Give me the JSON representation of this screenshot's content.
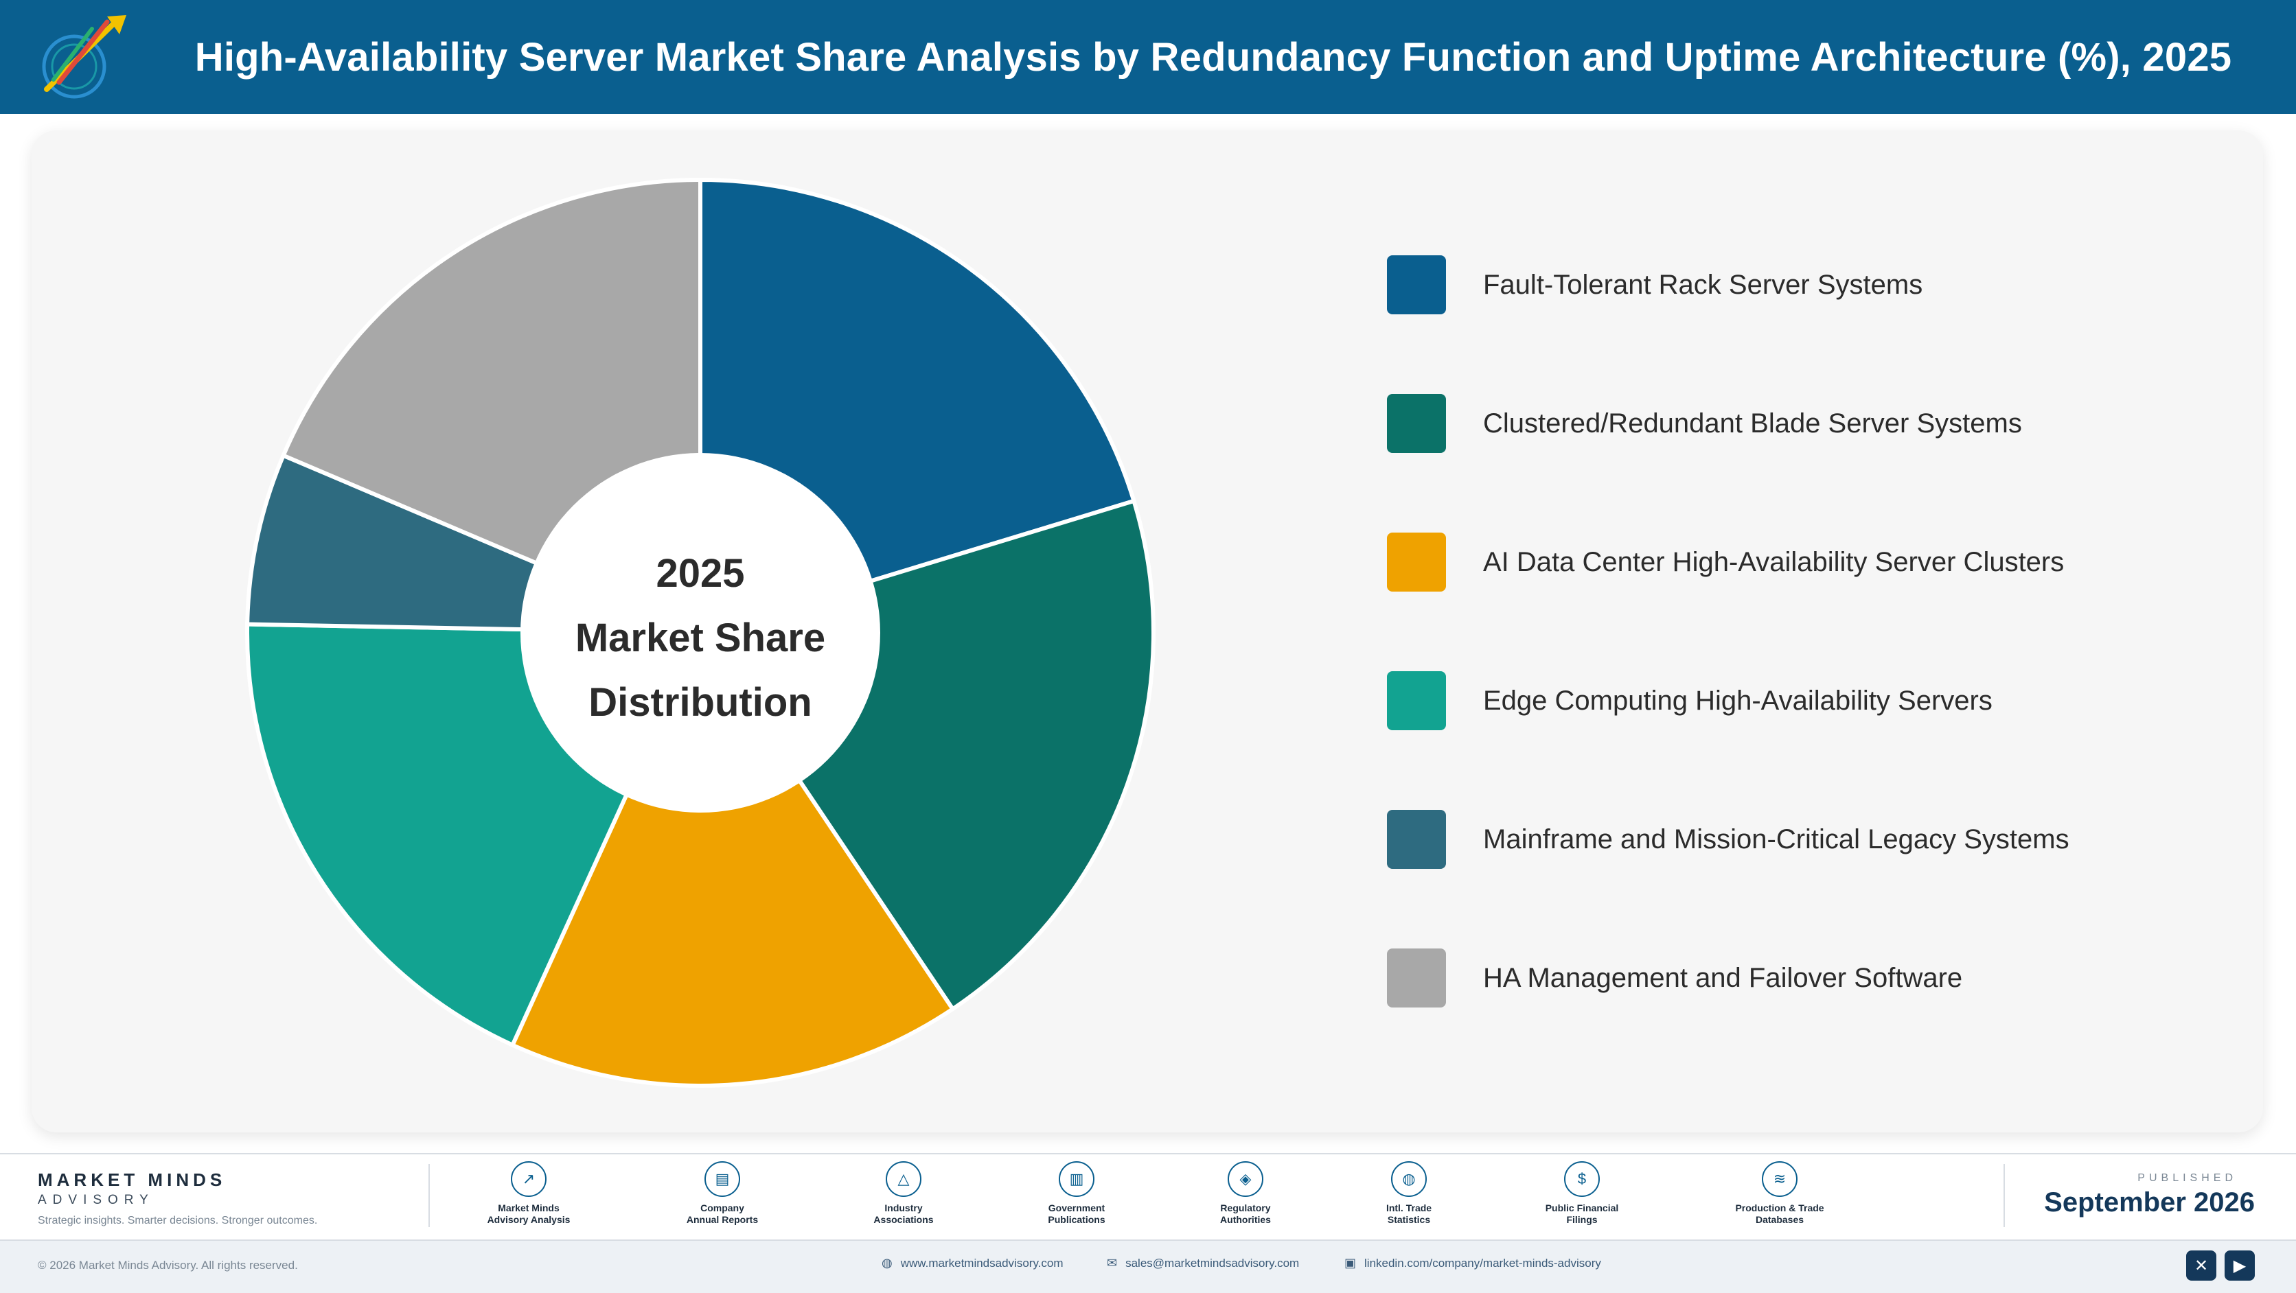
{
  "header": {
    "title": "High-Availability Server Market Share Analysis by Redundancy Function and Uptime Architecture (%), 2025",
    "logo_text": "Market Minds Advisory"
  },
  "chart_data": {
    "type": "pie",
    "donut": true,
    "center_label": [
      "2025",
      "Market Share",
      "Distribution"
    ],
    "legend_position": "right",
    "categories": [
      "Fault-Tolerant Rack Server Systems",
      "Clustered/Redundant Blade Server Systems",
      "AI Data Center High-Availability Server Clusters",
      "Edge Computing High-Availability Servers",
      "Mainframe and Mission-Critical Legacy Systems",
      "HA Management and Failover Software"
    ],
    "values": [
      20.3,
      20.3,
      16.2,
      18.5,
      6.1,
      18.6
    ],
    "colors": [
      "#0a5f8f",
      "#0b7268",
      "#efa200",
      "#12a391",
      "#2e6b80",
      "#a8a8a8"
    ]
  },
  "footer": {
    "brand_name": "MARKET MINDS",
    "brand_sub": "ADVISORY",
    "brand_tag": "Strategic insights. Smarter decisions. Stronger outcomes.",
    "sources": [
      {
        "label": "Market Minds\nAdvisory Analysis",
        "icon": "chart-line-icon",
        "glyph": "↗"
      },
      {
        "label": "Company\nAnnual Reports",
        "icon": "document-icon",
        "glyph": "▤"
      },
      {
        "label": "Industry\nAssociations",
        "icon": "network-icon",
        "glyph": "△"
      },
      {
        "label": "Government\nPublications",
        "icon": "building-icon",
        "glyph": "▥"
      },
      {
        "label": "Regulatory\nAuthorities",
        "icon": "shield-icon",
        "glyph": "◈"
      },
      {
        "label": "Intl. Trade\nStatistics",
        "icon": "globe-icon",
        "glyph": "◍"
      },
      {
        "label": "Public Financial\nFilings",
        "icon": "dollar-icon",
        "glyph": "$"
      },
      {
        "label": "Production & Trade\nDatabases",
        "icon": "database-icon",
        "glyph": "≋"
      }
    ],
    "published_label": "PUBLISHED",
    "published_date": "September 2026",
    "copyright": "© 2026 Market Minds Advisory. All rights reserved.",
    "website": "www.marketmindsadvisory.com",
    "email": "sales@marketmindsadvisory.com",
    "linkedin": "linkedin.com/company/market-minds-advisory"
  }
}
